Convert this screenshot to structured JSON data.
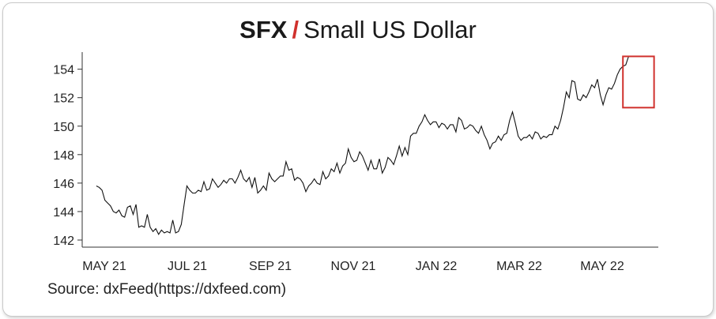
{
  "title": {
    "symbol": "SFX",
    "separator": "/",
    "name": "Small US Dollar"
  },
  "source": "Source: dxFeed(https://dxfeed.com)",
  "chart_data": {
    "type": "line",
    "title": "SFX / Small US Dollar",
    "xlabel": "",
    "ylabel": "",
    "x_ticks": [
      "MAY 21",
      "JUL 21",
      "SEP 21",
      "NOV 21",
      "JAN 22",
      "MAR 22",
      "MAY 22"
    ],
    "y_ticks": [
      142,
      144,
      146,
      148,
      150,
      152,
      154
    ],
    "xlim": [
      "2021-05-01",
      "2022-06-12"
    ],
    "ylim": [
      141.5,
      155.2
    ],
    "grid": false,
    "line_color": "#111111",
    "highlight": {
      "x_range": [
        "2022-05-18",
        "2022-06-09"
      ],
      "y_range": [
        151.3,
        154.9
      ],
      "color": "#d0312d"
    },
    "series": [
      {
        "points": [
          [
            "2021-05-11",
            145.8
          ],
          [
            "2021-05-13",
            145.7
          ],
          [
            "2021-05-15",
            145.5
          ],
          [
            "2021-05-17",
            144.8
          ],
          [
            "2021-05-19",
            144.6
          ],
          [
            "2021-05-21",
            144.4
          ],
          [
            "2021-05-23",
            144.0
          ],
          [
            "2021-05-25",
            143.9
          ],
          [
            "2021-05-27",
            144.1
          ],
          [
            "2021-05-29",
            143.7
          ],
          [
            "2021-05-31",
            143.6
          ],
          [
            "2021-06-02",
            144.3
          ],
          [
            "2021-06-04",
            144.4
          ],
          [
            "2021-06-06",
            143.8
          ],
          [
            "2021-06-08",
            144.5
          ],
          [
            "2021-06-10",
            142.9
          ],
          [
            "2021-06-12",
            143.0
          ],
          [
            "2021-06-14",
            142.9
          ],
          [
            "2021-06-16",
            143.8
          ],
          [
            "2021-06-18",
            142.9
          ],
          [
            "2021-06-20",
            142.6
          ],
          [
            "2021-06-22",
            142.8
          ],
          [
            "2021-06-24",
            142.4
          ],
          [
            "2021-06-26",
            142.7
          ],
          [
            "2021-06-28",
            142.5
          ],
          [
            "2021-06-30",
            142.6
          ],
          [
            "2021-07-02",
            142.5
          ],
          [
            "2021-07-04",
            143.4
          ],
          [
            "2021-07-06",
            142.5
          ],
          [
            "2021-07-08",
            142.6
          ],
          [
            "2021-07-10",
            143.1
          ],
          [
            "2021-07-12",
            144.5
          ],
          [
            "2021-07-14",
            145.8
          ],
          [
            "2021-07-16",
            145.5
          ],
          [
            "2021-07-18",
            145.3
          ],
          [
            "2021-07-20",
            145.3
          ],
          [
            "2021-07-22",
            145.5
          ],
          [
            "2021-07-24",
            145.4
          ],
          [
            "2021-07-26",
            146.1
          ],
          [
            "2021-07-28",
            145.5
          ],
          [
            "2021-07-30",
            145.6
          ],
          [
            "2021-08-01",
            146.3
          ],
          [
            "2021-08-03",
            146.0
          ],
          [
            "2021-08-05",
            145.7
          ],
          [
            "2021-08-07",
            145.9
          ],
          [
            "2021-08-09",
            146.2
          ],
          [
            "2021-08-11",
            146.0
          ],
          [
            "2021-08-13",
            146.3
          ],
          [
            "2021-08-15",
            146.3
          ],
          [
            "2021-08-17",
            146.0
          ],
          [
            "2021-08-19",
            146.4
          ],
          [
            "2021-08-21",
            146.9
          ],
          [
            "2021-08-23",
            146.3
          ],
          [
            "2021-08-25",
            146.1
          ],
          [
            "2021-08-27",
            146.4
          ],
          [
            "2021-08-29",
            145.7
          ],
          [
            "2021-08-31",
            146.4
          ],
          [
            "2021-09-02",
            145.3
          ],
          [
            "2021-09-04",
            145.5
          ],
          [
            "2021-09-06",
            145.8
          ],
          [
            "2021-09-08",
            145.5
          ],
          [
            "2021-09-10",
            146.7
          ],
          [
            "2021-09-12",
            146.3
          ],
          [
            "2021-09-14",
            146.1
          ],
          [
            "2021-09-16",
            146.3
          ],
          [
            "2021-09-18",
            146.5
          ],
          [
            "2021-09-20",
            146.5
          ],
          [
            "2021-09-22",
            147.5
          ],
          [
            "2021-09-24",
            146.9
          ],
          [
            "2021-09-26",
            147.0
          ],
          [
            "2021-09-28",
            146.2
          ],
          [
            "2021-09-30",
            146.4
          ],
          [
            "2021-10-02",
            146.3
          ],
          [
            "2021-10-04",
            146.0
          ],
          [
            "2021-10-06",
            145.4
          ],
          [
            "2021-10-08",
            145.8
          ],
          [
            "2021-10-10",
            146.0
          ],
          [
            "2021-10-12",
            146.3
          ],
          [
            "2021-10-14",
            146.0
          ],
          [
            "2021-10-16",
            145.9
          ],
          [
            "2021-10-18",
            146.8
          ],
          [
            "2021-10-20",
            146.3
          ],
          [
            "2021-10-22",
            146.5
          ],
          [
            "2021-10-24",
            147.0
          ],
          [
            "2021-10-26",
            146.8
          ],
          [
            "2021-10-28",
            147.4
          ],
          [
            "2021-10-30",
            146.7
          ],
          [
            "2021-11-01",
            147.2
          ],
          [
            "2021-11-03",
            147.4
          ],
          [
            "2021-11-05",
            148.4
          ],
          [
            "2021-11-07",
            147.8
          ],
          [
            "2021-11-09",
            147.5
          ],
          [
            "2021-11-11",
            147.6
          ],
          [
            "2021-11-13",
            148.2
          ],
          [
            "2021-11-15",
            147.9
          ],
          [
            "2021-11-17",
            147.4
          ],
          [
            "2021-11-19",
            146.9
          ],
          [
            "2021-11-21",
            147.6
          ],
          [
            "2021-11-23",
            147.0
          ],
          [
            "2021-11-25",
            147.0
          ],
          [
            "2021-11-27",
            147.7
          ],
          [
            "2021-11-29",
            146.7
          ],
          [
            "2021-12-01",
            147.1
          ],
          [
            "2021-12-03",
            147.8
          ],
          [
            "2021-12-05",
            147.6
          ],
          [
            "2021-12-07",
            147.3
          ],
          [
            "2021-12-09",
            147.9
          ],
          [
            "2021-12-11",
            148.6
          ],
          [
            "2021-12-13",
            147.9
          ],
          [
            "2021-12-15",
            148.5
          ],
          [
            "2021-12-17",
            148.0
          ],
          [
            "2021-12-19",
            149.3
          ],
          [
            "2021-12-21",
            149.5
          ],
          [
            "2021-12-23",
            149.5
          ],
          [
            "2021-12-25",
            150.0
          ],
          [
            "2021-12-27",
            150.3
          ],
          [
            "2021-12-29",
            150.8
          ],
          [
            "2021-12-31",
            150.4
          ],
          [
            "2022-01-02",
            150.1
          ],
          [
            "2022-01-04",
            150.3
          ],
          [
            "2022-01-06",
            150.3
          ],
          [
            "2022-01-08",
            149.9
          ],
          [
            "2022-01-10",
            150.2
          ],
          [
            "2022-01-12",
            150.1
          ],
          [
            "2022-01-14",
            149.8
          ],
          [
            "2022-01-16",
            150.1
          ],
          [
            "2022-01-18",
            150.1
          ],
          [
            "2022-01-20",
            149.6
          ],
          [
            "2022-01-22",
            150.6
          ],
          [
            "2022-01-24",
            150.4
          ],
          [
            "2022-01-26",
            149.8
          ],
          [
            "2022-01-28",
            149.9
          ],
          [
            "2022-01-30",
            150.1
          ],
          [
            "2022-02-01",
            150.0
          ],
          [
            "2022-02-03",
            149.7
          ],
          [
            "2022-02-05",
            149.5
          ],
          [
            "2022-02-07",
            150.0
          ],
          [
            "2022-02-09",
            149.4
          ],
          [
            "2022-02-11",
            149.0
          ],
          [
            "2022-02-13",
            148.4
          ],
          [
            "2022-02-15",
            148.8
          ],
          [
            "2022-02-17",
            148.9
          ],
          [
            "2022-02-19",
            149.3
          ],
          [
            "2022-02-21",
            149.0
          ],
          [
            "2022-02-23",
            149.4
          ],
          [
            "2022-02-25",
            149.5
          ],
          [
            "2022-02-27",
            150.4
          ],
          [
            "2022-03-01",
            151.0
          ],
          [
            "2022-03-03",
            150.2
          ],
          [
            "2022-03-05",
            149.3
          ],
          [
            "2022-03-07",
            149.0
          ],
          [
            "2022-03-09",
            149.2
          ],
          [
            "2022-03-11",
            149.2
          ],
          [
            "2022-03-13",
            149.4
          ],
          [
            "2022-03-15",
            149.1
          ],
          [
            "2022-03-17",
            149.6
          ],
          [
            "2022-03-19",
            149.5
          ],
          [
            "2022-03-21",
            149.1
          ],
          [
            "2022-03-23",
            149.3
          ],
          [
            "2022-03-25",
            149.2
          ],
          [
            "2022-03-27",
            149.4
          ],
          [
            "2022-03-29",
            149.4
          ],
          [
            "2022-03-31",
            150.0
          ],
          [
            "2022-04-02",
            149.8
          ],
          [
            "2022-04-04",
            150.4
          ],
          [
            "2022-04-06",
            151.3
          ],
          [
            "2022-04-08",
            152.4
          ],
          [
            "2022-04-10",
            152.0
          ],
          [
            "2022-04-12",
            153.2
          ],
          [
            "2022-04-14",
            153.1
          ],
          [
            "2022-04-16",
            151.9
          ],
          [
            "2022-04-18",
            151.8
          ],
          [
            "2022-04-20",
            152.2
          ],
          [
            "2022-04-22",
            152.0
          ],
          [
            "2022-04-24",
            152.4
          ],
          [
            "2022-04-26",
            152.9
          ],
          [
            "2022-04-28",
            152.7
          ],
          [
            "2022-04-30",
            153.3
          ],
          [
            "2022-05-02",
            152.2
          ],
          [
            "2022-05-04",
            151.5
          ],
          [
            "2022-05-06",
            152.2
          ],
          [
            "2022-05-08",
            152.7
          ],
          [
            "2022-05-10",
            152.6
          ],
          [
            "2022-05-12",
            153.0
          ],
          [
            "2022-05-14",
            153.6
          ],
          [
            "2022-05-16",
            154.0
          ],
          [
            "2022-05-18",
            154.2
          ],
          [
            "2022-05-20",
            154.3
          ],
          [
            "2022-05-22",
            154.9
          ]
        ]
      }
    ]
  }
}
